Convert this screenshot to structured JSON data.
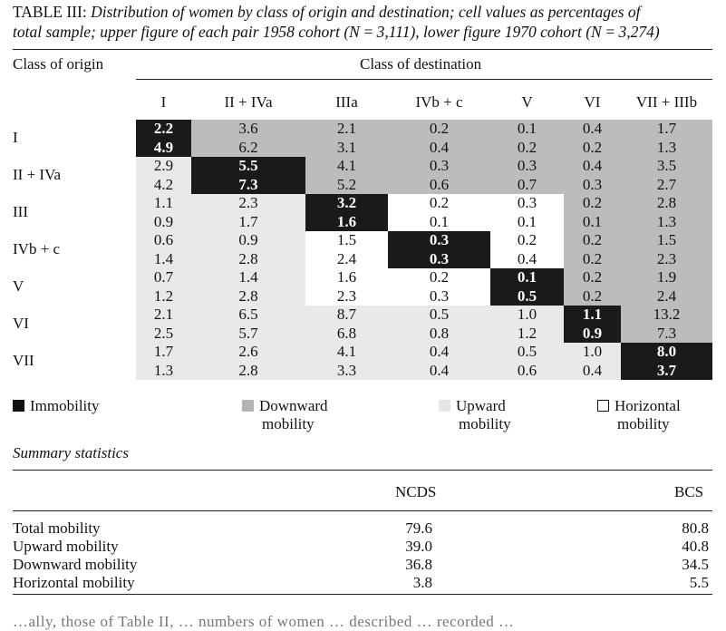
{
  "caption": {
    "label": "TABLE III:",
    "line1": "Distribution of women by class of origin and destination; cell values as percentages of",
    "line2": "total sample; upper figure of each pair 1958 cohort (N = 3,111), lower figure 1970 cohort (N = 3,274)"
  },
  "header": {
    "origin_label": "Class of origin",
    "destination_label": "Class of destination",
    "columns": [
      "I",
      "II + IVa",
      "IIIa",
      "IVb + c",
      "V",
      "VI",
      "VII + IIIb"
    ]
  },
  "rows": [
    {
      "label": "I",
      "cells": [
        [
          "2.2",
          "4.9",
          "immobility"
        ],
        [
          "3.6",
          "6.2",
          "downward"
        ],
        [
          "2.1",
          "3.1",
          "downward"
        ],
        [
          "0.2",
          "0.4",
          "downward"
        ],
        [
          "0.1",
          "0.2",
          "downward"
        ],
        [
          "0.4",
          "0.2",
          "downward"
        ],
        [
          "1.7",
          "1.3",
          "downward"
        ]
      ]
    },
    {
      "label": "II + IVa",
      "cells": [
        [
          "2.9",
          "4.2",
          "upward"
        ],
        [
          "5.5",
          "7.3",
          "immobility"
        ],
        [
          "4.1",
          "5.2",
          "downward"
        ],
        [
          "0.3",
          "0.6",
          "downward"
        ],
        [
          "0.3",
          "0.7",
          "downward"
        ],
        [
          "0.4",
          "0.3",
          "downward"
        ],
        [
          "3.5",
          "2.7",
          "downward"
        ]
      ]
    },
    {
      "label": "III",
      "cells": [
        [
          "1.1",
          "0.9",
          "upward"
        ],
        [
          "2.3",
          "1.7",
          "upward"
        ],
        [
          "3.2",
          "1.6",
          "immobility"
        ],
        [
          "0.2",
          "0.1",
          "horizontal"
        ],
        [
          "0.3",
          "0.1",
          "horizontal"
        ],
        [
          "0.2",
          "0.1",
          "downward"
        ],
        [
          "2.8",
          "1.3",
          "downward"
        ]
      ]
    },
    {
      "label": "IVb + c",
      "cells": [
        [
          "0.6",
          "1.4",
          "upward"
        ],
        [
          "0.9",
          "2.8",
          "upward"
        ],
        [
          "1.5",
          "2.4",
          "horizontal"
        ],
        [
          "0.3",
          "0.3",
          "immobility"
        ],
        [
          "0.2",
          "0.4",
          "horizontal"
        ],
        [
          "0.2",
          "0.2",
          "downward"
        ],
        [
          "1.5",
          "2.3",
          "downward"
        ]
      ]
    },
    {
      "label": "V",
      "cells": [
        [
          "0.7",
          "1.2",
          "upward"
        ],
        [
          "1.4",
          "2.8",
          "upward"
        ],
        [
          "1.6",
          "2.3",
          "horizontal"
        ],
        [
          "0.2",
          "0.3",
          "horizontal"
        ],
        [
          "0.1",
          "0.5",
          "immobility"
        ],
        [
          "0.2",
          "0.2",
          "downward"
        ],
        [
          "1.9",
          "2.4",
          "downward"
        ]
      ]
    },
    {
      "label": "VI",
      "cells": [
        [
          "2.1",
          "2.5",
          "upward"
        ],
        [
          "6.5",
          "5.7",
          "upward"
        ],
        [
          "8.7",
          "6.8",
          "upward"
        ],
        [
          "0.5",
          "0.8",
          "upward"
        ],
        [
          "1.0",
          "1.2",
          "upward"
        ],
        [
          "1.1",
          "0.9",
          "immobility"
        ],
        [
          "13.2",
          "7.3",
          "downward"
        ]
      ]
    },
    {
      "label": "VII",
      "cells": [
        [
          "1.7",
          "1.3",
          "upward"
        ],
        [
          "2.6",
          "2.8",
          "upward"
        ],
        [
          "4.1",
          "3.3",
          "upward"
        ],
        [
          "0.4",
          "0.4",
          "upward"
        ],
        [
          "0.5",
          "0.6",
          "upward"
        ],
        [
          "1.0",
          "0.4",
          "upward"
        ],
        [
          "8.0",
          "3.7",
          "immobility"
        ]
      ]
    }
  ],
  "legend": {
    "immobility": "Immobility",
    "downward_1": "Downward",
    "downward_2": "mobility",
    "upward_1": "Upward",
    "upward_2": "mobility",
    "horizontal_1": "Horizontal",
    "horizontal_2": "mobility"
  },
  "summary": {
    "title": "Summary statistics",
    "col_ncds": "NCDS",
    "col_bcs": "BCS",
    "rows": [
      {
        "label": "Total mobility",
        "ncds": "79.6",
        "bcs": "80.8"
      },
      {
        "label": "Upward mobility",
        "ncds": "39.0",
        "bcs": "40.8"
      },
      {
        "label": "Downward mobility",
        "ncds": "36.8",
        "bcs": "34.5"
      },
      {
        "label": "Horizontal mobility",
        "ncds": "3.8",
        "bcs": "5.5"
      }
    ]
  },
  "footer_fragment": "…ally, those of Table II, … numbers of women … described … recorded …"
}
